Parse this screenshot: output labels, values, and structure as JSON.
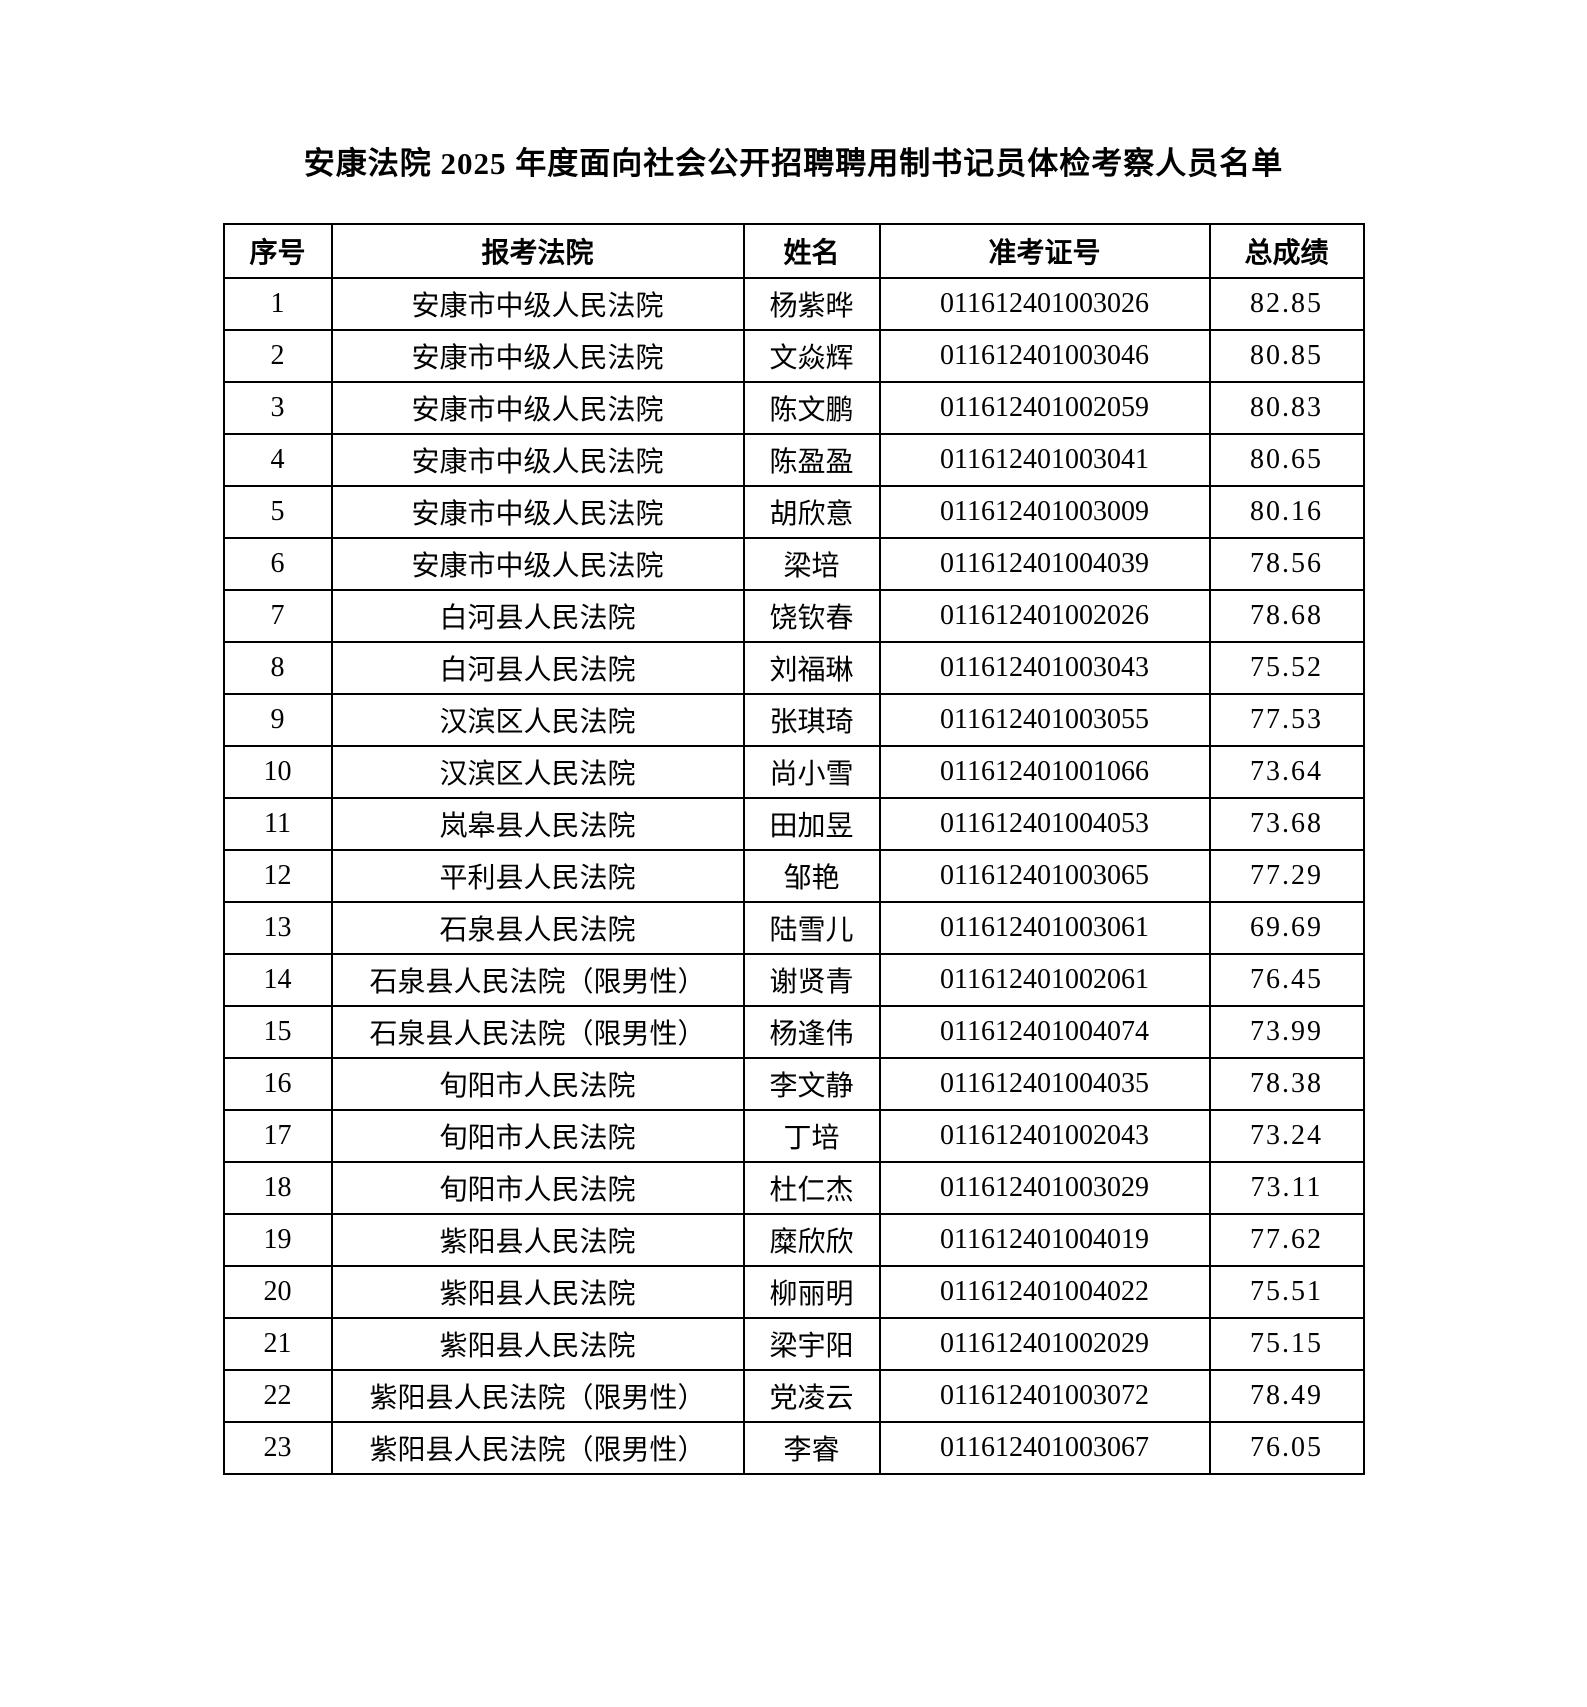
{
  "page": {
    "title": "安康法院 2025 年度面向社会公开招聘聘用制书记员体检考察人员名单"
  },
  "table": {
    "headers": [
      "序号",
      "报考法院",
      "姓名",
      "准考证号",
      "总成绩"
    ],
    "rows": [
      [
        "1",
        "安康市中级人民法院",
        "杨紫晔",
        "011612401003026",
        "82.85"
      ],
      [
        "2",
        "安康市中级人民法院",
        "文焱辉",
        "011612401003046",
        "80.85"
      ],
      [
        "3",
        "安康市中级人民法院",
        "陈文鹏",
        "011612401002059",
        "80.83"
      ],
      [
        "4",
        "安康市中级人民法院",
        "陈盈盈",
        "011612401003041",
        "80.65"
      ],
      [
        "5",
        "安康市中级人民法院",
        "胡欣意",
        "011612401003009",
        "80.16"
      ],
      [
        "6",
        "安康市中级人民法院",
        "梁培",
        "011612401004039",
        "78.56"
      ],
      [
        "7",
        "白河县人民法院",
        "饶钦春",
        "011612401002026",
        "78.68"
      ],
      [
        "8",
        "白河县人民法院",
        "刘福琳",
        "011612401003043",
        "75.52"
      ],
      [
        "9",
        "汉滨区人民法院",
        "张琪琦",
        "011612401003055",
        "77.53"
      ],
      [
        "10",
        "汉滨区人民法院",
        "尚小雪",
        "011612401001066",
        "73.64"
      ],
      [
        "11",
        "岚皋县人民法院",
        "田加昱",
        "011612401004053",
        "73.68"
      ],
      [
        "12",
        "平利县人民法院",
        "邹艳",
        "011612401003065",
        "77.29"
      ],
      [
        "13",
        "石泉县人民法院",
        "陆雪儿",
        "011612401003061",
        "69.69"
      ],
      [
        "14",
        "石泉县人民法院（限男性）",
        "谢贤青",
        "011612401002061",
        "76.45"
      ],
      [
        "15",
        "石泉县人民法院（限男性）",
        "杨逢伟",
        "011612401004074",
        "73.99"
      ],
      [
        "16",
        "旬阳市人民法院",
        "李文静",
        "011612401004035",
        "78.38"
      ],
      [
        "17",
        "旬阳市人民法院",
        "丁培",
        "011612401002043",
        "73.24"
      ],
      [
        "18",
        "旬阳市人民法院",
        "杜仁杰",
        "011612401003029",
        "73.11"
      ],
      [
        "19",
        "紫阳县人民法院",
        "糜欣欣",
        "011612401004019",
        "77.62"
      ],
      [
        "20",
        "紫阳县人民法院",
        "柳丽明",
        "011612401004022",
        "75.51"
      ],
      [
        "21",
        "紫阳县人民法院",
        "梁宇阳",
        "011612401002029",
        "75.15"
      ],
      [
        "22",
        "紫阳县人民法院（限男性）",
        "党凌云",
        "011612401003072",
        "78.49"
      ],
      [
        "23",
        "紫阳县人民法院（限男性）",
        "李睿",
        "011612401003067",
        "76.05"
      ]
    ]
  }
}
